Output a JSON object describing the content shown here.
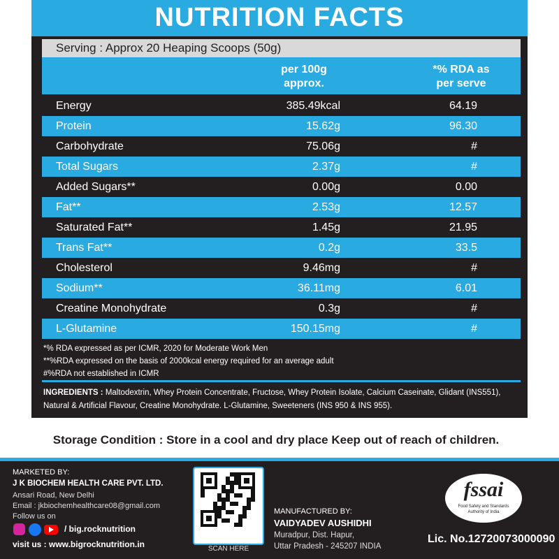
{
  "header": {
    "title": "NUTRITION FACTS"
  },
  "serving": "Serving : Approx 20 Heaping Scoops (50g)",
  "table": {
    "columns": [
      [
        "per 100g",
        "approx."
      ],
      [
        "*% RDA as",
        "per serve"
      ]
    ],
    "rows": [
      [
        "Energy",
        "385.49kcal",
        "64.19"
      ],
      [
        "Protein",
        "15.62g",
        "96.30"
      ],
      [
        "Carbohydrate",
        "75.06g",
        "#"
      ],
      [
        "Total Sugars",
        "2.37g",
        "#"
      ],
      [
        "Added Sugars**",
        "0.00g",
        "0.00"
      ],
      [
        "Fat**",
        "2.53g",
        "12.57"
      ],
      [
        "Saturated Fat**",
        "1.45g",
        "21.95"
      ],
      [
        "Trans Fat**",
        "0.2g",
        "33.5"
      ],
      [
        "Cholesterol",
        "9.46mg",
        "#"
      ],
      [
        "Sodium**",
        "36.11mg",
        "6.01"
      ],
      [
        "Creatine Monohydrate",
        "0.3g",
        "#"
      ],
      [
        "L-Glutamine",
        "150.15mg",
        "#"
      ]
    ]
  },
  "footnotes": [
    "*% RDA expressed as per ICMR, 2020 for Moderate Work Men",
    "**%RDA expressed on the basis of 2000kcal energy required for an average adult",
    "#%RDA not established in ICMR"
  ],
  "ingredients": {
    "label": "INGREDIENTS :",
    "text": "Maltodextrin, Whey Protein Concentrate, Fructose, Whey Protein Isolate, Calcium Caseinate, Glidant (INS551), Natural & Artificial Flavour, Creatine Monohydrate. L-Glutamine, Sweeteners (INS 950 & INS 955)."
  },
  "storage": "Storage Condition : Store in a cool and dry place Keep out of reach of children.",
  "footer": {
    "marketed": {
      "heading": "MARKETED BY:",
      "company": "J K BIOCHEM HEALTH CARE PVT. LTD.",
      "address": "Ansari Road, New Delhi",
      "email": "Email : jkbiochemhealthcare08@gmail.com",
      "follow": "Follow us on",
      "handle": "/ big.rocknutrition",
      "website": "visit us : www.bigrocknutrition.in"
    },
    "qr": "SCAN HERE",
    "manufactured": {
      "heading": "MANUFACTURED BY:",
      "company": "VAIDYADEV AUSHIDHI",
      "line1": "Muradpur, Dist. Hapur,",
      "line2": "Uttar Pradesh - 245207 INDIA"
    },
    "fssai": {
      "logo": "fssai",
      "line1": "Food Safety and Standards",
      "line2": "Authority of India",
      "license": "Lic. No.12720073000090"
    }
  }
}
